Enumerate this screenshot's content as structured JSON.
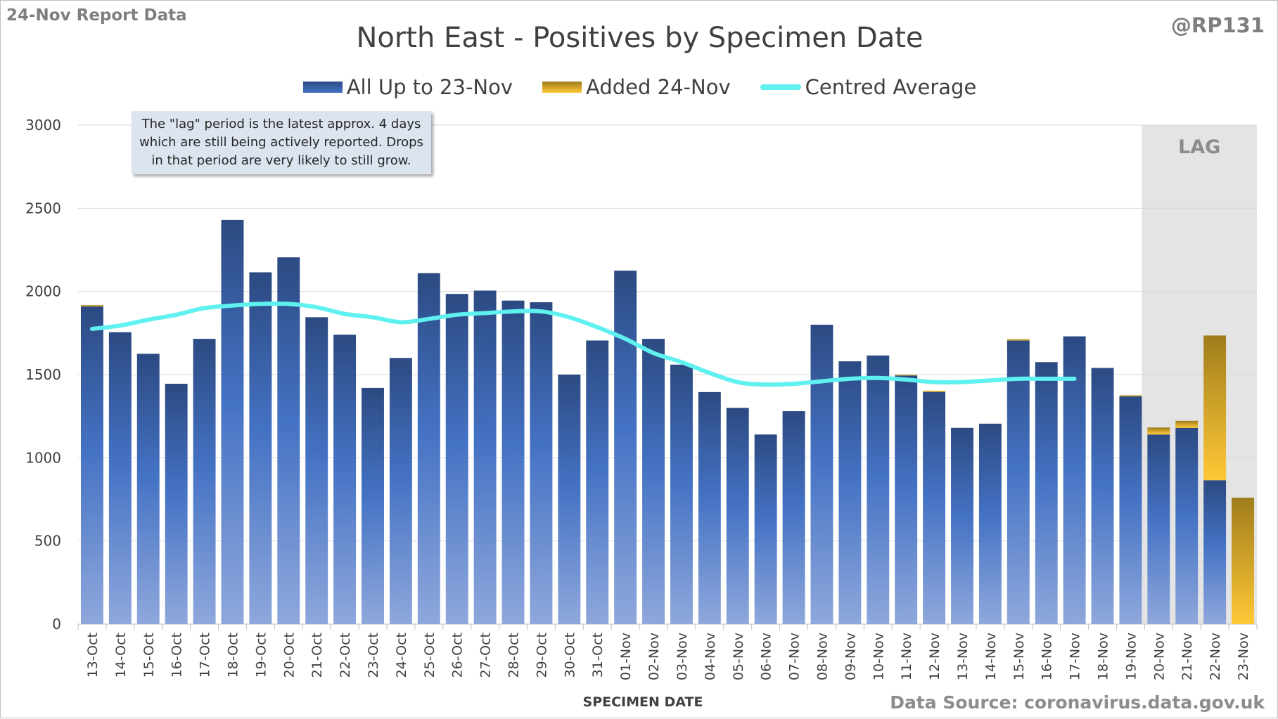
{
  "header": {
    "report_label": "24-Nov Report Data",
    "handle": "@RP131",
    "source": "Data Source: coronavirus.data.gov.uk"
  },
  "annotation": "The \"lag\" period is the latest approx. 4 days which are still being actively reported.  Drops in that period are very likely to still grow.",
  "colors": {
    "base_top": "#2c4a82",
    "base_mid": "#4472c4",
    "base_bottom": "#8fa8dc",
    "added_top": "#a07d1c",
    "added_bottom": "#ffc836",
    "average_line": "#5ff0f0",
    "lag_band": "#e4e4e4",
    "grid": "#d9d9d9"
  },
  "chart_data": {
    "type": "bar",
    "title": "North East - Positives by Specimen Date",
    "xlabel": "SPECIMEN DATE",
    "ylabel": "",
    "ylim": [
      0,
      3000
    ],
    "yticks": [
      0,
      500,
      1000,
      1500,
      2000,
      2500,
      3000
    ],
    "grid": true,
    "legend_position": "top",
    "stacked": true,
    "lag_label": "LAG",
    "lag_categories": [
      "20-Nov",
      "21-Nov",
      "22-Nov",
      "23-Nov"
    ],
    "categories": [
      "13-Oct",
      "14-Oct",
      "15-Oct",
      "16-Oct",
      "17-Oct",
      "18-Oct",
      "19-Oct",
      "20-Oct",
      "21-Oct",
      "22-Oct",
      "23-Oct",
      "24-Oct",
      "25-Oct",
      "26-Oct",
      "27-Oct",
      "28-Oct",
      "29-Oct",
      "30-Oct",
      "31-Oct",
      "01-Nov",
      "02-Nov",
      "03-Nov",
      "04-Nov",
      "05-Nov",
      "06-Nov",
      "07-Nov",
      "08-Nov",
      "09-Nov",
      "10-Nov",
      "11-Nov",
      "12-Nov",
      "13-Nov",
      "14-Nov",
      "15-Nov",
      "16-Nov",
      "17-Nov",
      "18-Nov",
      "19-Nov",
      "20-Nov",
      "21-Nov",
      "22-Nov",
      "23-Nov"
    ],
    "series": [
      {
        "name": "All Up to 23-Nov",
        "kind": "bar",
        "values": [
          1910,
          1755,
          1625,
          1445,
          1715,
          2430,
          2115,
          2205,
          1845,
          1740,
          1420,
          1600,
          2110,
          1985,
          2005,
          1945,
          1935,
          1500,
          1705,
          2125,
          1715,
          1560,
          1395,
          1300,
          1140,
          1280,
          1800,
          1580,
          1615,
          1495,
          1395,
          1180,
          1205,
          1705,
          1575,
          1730,
          1540,
          1370,
          1140,
          1180,
          865,
          0
        ]
      },
      {
        "name": "Added 24-Nov",
        "kind": "bar",
        "values": [
          8,
          0,
          0,
          0,
          0,
          0,
          0,
          0,
          0,
          0,
          0,
          0,
          0,
          0,
          0,
          0,
          0,
          0,
          0,
          0,
          0,
          0,
          0,
          0,
          0,
          0,
          0,
          0,
          0,
          5,
          8,
          0,
          0,
          8,
          0,
          0,
          0,
          6,
          42,
          42,
          870,
          760
        ]
      },
      {
        "name": "Centred Average",
        "kind": "line",
        "values": [
          1775,
          1795,
          1830,
          1860,
          1900,
          1915,
          1925,
          1925,
          1905,
          1865,
          1845,
          1815,
          1835,
          1860,
          1870,
          1880,
          1880,
          1845,
          1785,
          1715,
          1630,
          1575,
          1510,
          1455,
          1440,
          1445,
          1460,
          1475,
          1480,
          1470,
          1455,
          1455,
          1465,
          1475,
          1475,
          1475,
          null,
          null,
          null,
          null,
          null,
          null
        ]
      }
    ]
  }
}
